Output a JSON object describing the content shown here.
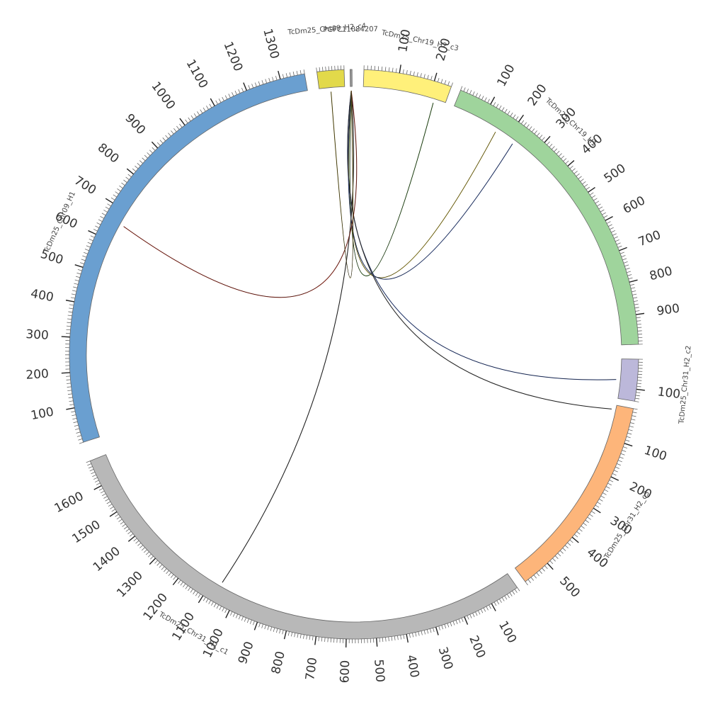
{
  "diagram": {
    "type": "circos",
    "segments": [
      {
        "name": "TcDm25_Chr19_H2_c3",
        "color": "#fff07a",
        "tick_labels": [
          "100",
          "200"
        ]
      },
      {
        "name": "TcDm25_Chr19_H1",
        "color": "#9fd49c",
        "tick_labels": [
          "100",
          "200",
          "300",
          "400",
          "500",
          "600",
          "700",
          "800",
          "900"
        ]
      },
      {
        "name": "TcDm25_Chr31_H2_c2",
        "color": "#bcb8da",
        "tick_labels": [
          "100"
        ]
      },
      {
        "name": "TcDm25_Chr31_H2_c3",
        "color": "#fdb57a",
        "tick_labels": [
          "100",
          "200",
          "300",
          "400",
          "500"
        ]
      },
      {
        "name": "TcDm25_Chr31_H1_c1",
        "color": "#b8b8b8",
        "tick_labels": [
          "100",
          "200",
          "300",
          "400",
          "500",
          "600",
          "700",
          "800",
          "900",
          "1000",
          "1100",
          "1200",
          "1300",
          "1400",
          "1500",
          "1600"
        ]
      },
      {
        "name": "TcDm25_Chr09_H1",
        "color": "#6a9fd0",
        "tick_labels": [
          "100",
          "200",
          "300",
          "400",
          "500",
          "600",
          "700",
          "800",
          "900",
          "1000",
          "1100",
          "1200",
          "1300"
        ]
      },
      {
        "name": "TcDm25_Chr09_H2_c4",
        "color": "#e2d94a",
        "tick_labels": []
      },
      {
        "name": "PGFC11084207",
        "color": "#999999",
        "tick_labels": []
      }
    ],
    "links": [
      {
        "from": "PGFC11084207",
        "to": "TcDm25_Chr19_H2_c3"
      },
      {
        "from": "PGFC11084207",
        "to": "TcDm25_Chr19_H1"
      },
      {
        "from": "PGFC11084207",
        "to": "TcDm25_Chr19_H1"
      },
      {
        "from": "PGFC11084207",
        "to": "TcDm25_Chr31_H2_c2"
      },
      {
        "from": "PGFC11084207",
        "to": "TcDm25_Chr31_H2_c3"
      },
      {
        "from": "PGFC11084207",
        "to": "TcDm25_Chr31_H1_c1"
      },
      {
        "from": "PGFC11084207",
        "to": "TcDm25_Chr09_H1"
      },
      {
        "from": "PGFC11084207",
        "to": "TcDm25_Chr09_H2_c4"
      }
    ]
  }
}
